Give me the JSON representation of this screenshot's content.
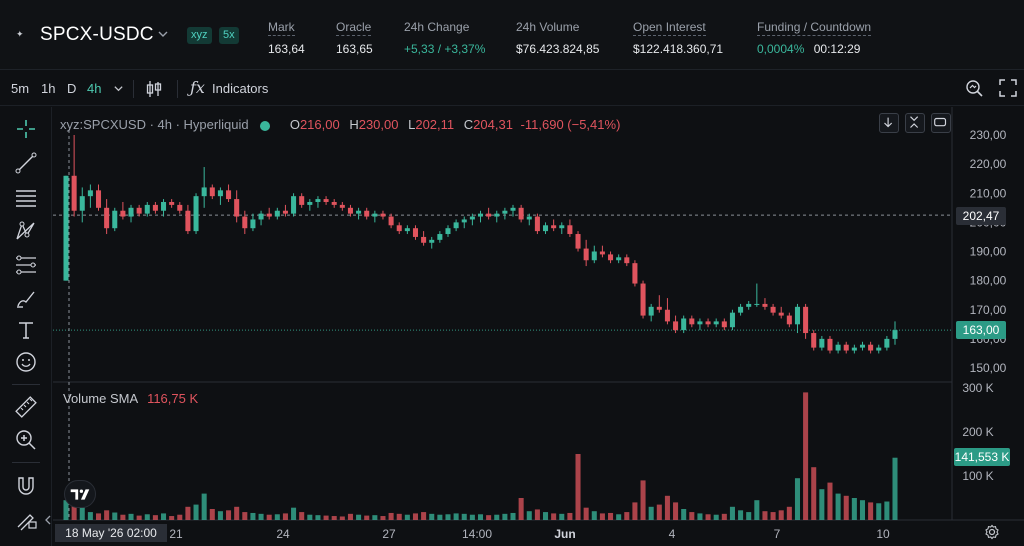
{
  "header": {
    "symbol": "SPCX-USDC",
    "tags": [
      "xyz",
      "5x"
    ],
    "stats": [
      {
        "label": "Mark",
        "value": "163,64"
      },
      {
        "label": "Oracle",
        "value": "163,65"
      },
      {
        "label": "24h Change",
        "value": "+5,33 / +3,37%"
      },
      {
        "label": "24h Volume",
        "value": "$76.423.824,85"
      },
      {
        "label": "Open Interest",
        "value": "$122.418.360,71"
      },
      {
        "label": "Funding / Countdown",
        "value": "0,0004%",
        "value2": "00:12:29"
      }
    ]
  },
  "toolbar": {
    "timeframes": [
      "5m",
      "1h",
      "D",
      "4h"
    ],
    "active_timeframe": "4h",
    "indicators_label": "Indicators"
  },
  "legend": {
    "title": "xyz:SPCXUSD · 4h · Hyperliquid",
    "ohlc": {
      "O": "216,00",
      "H": "230,00",
      "L": "202,11",
      "C": "204,31"
    },
    "change": "-11,690 (−5,41%)",
    "volume_label": "Volume SMA",
    "volume_value": "116,75 K"
  },
  "price_axis": [
    "230,00",
    "220,00",
    "210,00",
    "200,00",
    "190,00",
    "180,00",
    "170,00",
    "160,00",
    "150,00"
  ],
  "volume_axis": [
    "300 K",
    "200 K",
    "100 K"
  ],
  "time_axis": [
    "21",
    "24",
    "27",
    "14:00",
    "Jun",
    "4",
    "7",
    "10"
  ],
  "crosshair": {
    "price": "202,47",
    "date": "18 May '26   02:00"
  },
  "last_price": "163,00",
  "last_volume": "141,553 K",
  "colors": {
    "up": "#3ab79c",
    "down": "#e0545e",
    "accent": "#4ec9b0"
  },
  "chart_data": {
    "type": "candlestick",
    "title": "xyz:SPCXUSD · 4h · Hyperliquid",
    "x": [
      "18 May",
      "21",
      "24",
      "27",
      "Jun",
      "4",
      "7",
      "10"
    ],
    "ylim": [
      145,
      233
    ],
    "volume_ylim": [
      0,
      310000
    ],
    "candles": [
      {
        "o": 180,
        "h": 216,
        "l": 180,
        "c": 216,
        "v": 45000
      },
      {
        "o": 216,
        "h": 230,
        "l": 202,
        "c": 204,
        "v": 52000
      },
      {
        "o": 204,
        "h": 212,
        "l": 200,
        "c": 209,
        "v": 28000
      },
      {
        "o": 209,
        "h": 213,
        "l": 205,
        "c": 211,
        "v": 18000
      },
      {
        "o": 211,
        "h": 213,
        "l": 204,
        "c": 205,
        "v": 15000
      },
      {
        "o": 205,
        "h": 208,
        "l": 196,
        "c": 198,
        "v": 22000
      },
      {
        "o": 198,
        "h": 205,
        "l": 197,
        "c": 204,
        "v": 17000
      },
      {
        "o": 204,
        "h": 207,
        "l": 201,
        "c": 202,
        "v": 12000
      },
      {
        "o": 202,
        "h": 206,
        "l": 200,
        "c": 205,
        "v": 14000
      },
      {
        "o": 205,
        "h": 206,
        "l": 202,
        "c": 203,
        "v": 10000
      },
      {
        "o": 203,
        "h": 207,
        "l": 202,
        "c": 206,
        "v": 13000
      },
      {
        "o": 206,
        "h": 207,
        "l": 203,
        "c": 204,
        "v": 11000
      },
      {
        "o": 204,
        "h": 208,
        "l": 202,
        "c": 207,
        "v": 15000
      },
      {
        "o": 207,
        "h": 208,
        "l": 205,
        "c": 206,
        "v": 9000
      },
      {
        "o": 206,
        "h": 207,
        "l": 203,
        "c": 204,
        "v": 12000
      },
      {
        "o": 204,
        "h": 206,
        "l": 196,
        "c": 197,
        "v": 30000
      },
      {
        "o": 197,
        "h": 210,
        "l": 196,
        "c": 209,
        "v": 35000
      },
      {
        "o": 209,
        "h": 219,
        "l": 205,
        "c": 212,
        "v": 60000
      },
      {
        "o": 212,
        "h": 213,
        "l": 208,
        "c": 209,
        "v": 25000
      },
      {
        "o": 209,
        "h": 212,
        "l": 206,
        "c": 211,
        "v": 20000
      },
      {
        "o": 211,
        "h": 213,
        "l": 207,
        "c": 208,
        "v": 22000
      },
      {
        "o": 208,
        "h": 211,
        "l": 200,
        "c": 202,
        "v": 30000
      },
      {
        "o": 202,
        "h": 204,
        "l": 196,
        "c": 198,
        "v": 18000
      },
      {
        "o": 198,
        "h": 203,
        "l": 197,
        "c": 201,
        "v": 16000
      },
      {
        "o": 201,
        "h": 204,
        "l": 199,
        "c": 203,
        "v": 14000
      },
      {
        "o": 203,
        "h": 205,
        "l": 201,
        "c": 202,
        "v": 12000
      },
      {
        "o": 202,
        "h": 205,
        "l": 201,
        "c": 204,
        "v": 13000
      },
      {
        "o": 204,
        "h": 206,
        "l": 202,
        "c": 203,
        "v": 15000
      },
      {
        "o": 203,
        "h": 210,
        "l": 202,
        "c": 209,
        "v": 28000
      },
      {
        "o": 209,
        "h": 210,
        "l": 205,
        "c": 206,
        "v": 18000
      },
      {
        "o": 206,
        "h": 208,
        "l": 204,
        "c": 207,
        "v": 12000
      },
      {
        "o": 207,
        "h": 209,
        "l": 205,
        "c": 208,
        "v": 11000
      },
      {
        "o": 208,
        "h": 209,
        "l": 206,
        "c": 207,
        "v": 10000
      },
      {
        "o": 207,
        "h": 208,
        "l": 205,
        "c": 206,
        "v": 9000
      },
      {
        "o": 206,
        "h": 207,
        "l": 204,
        "c": 205,
        "v": 8000
      },
      {
        "o": 205,
        "h": 206,
        "l": 202,
        "c": 203,
        "v": 14000
      },
      {
        "o": 203,
        "h": 205,
        "l": 201,
        "c": 204,
        "v": 12000
      },
      {
        "o": 204,
        "h": 205,
        "l": 201,
        "c": 202,
        "v": 10000
      },
      {
        "o": 202,
        "h": 204,
        "l": 200,
        "c": 203,
        "v": 11000
      },
      {
        "o": 203,
        "h": 204,
        "l": 201,
        "c": 202,
        "v": 9000
      },
      {
        "o": 202,
        "h": 203,
        "l": 198,
        "c": 199,
        "v": 16000
      },
      {
        "o": 199,
        "h": 200,
        "l": 196,
        "c": 197,
        "v": 14000
      },
      {
        "o": 197,
        "h": 199,
        "l": 196,
        "c": 198,
        "v": 12000
      },
      {
        "o": 198,
        "h": 199,
        "l": 194,
        "c": 195,
        "v": 15000
      },
      {
        "o": 195,
        "h": 197,
        "l": 192,
        "c": 193,
        "v": 18000
      },
      {
        "o": 193,
        "h": 195,
        "l": 191,
        "c": 194,
        "v": 14000
      },
      {
        "o": 194,
        "h": 197,
        "l": 193,
        "c": 196,
        "v": 12000
      },
      {
        "o": 196,
        "h": 199,
        "l": 195,
        "c": 198,
        "v": 13000
      },
      {
        "o": 198,
        "h": 201,
        "l": 197,
        "c": 200,
        "v": 15000
      },
      {
        "o": 200,
        "h": 202,
        "l": 198,
        "c": 201,
        "v": 14000
      },
      {
        "o": 201,
        "h": 203,
        "l": 199,
        "c": 202,
        "v": 12000
      },
      {
        "o": 202,
        "h": 204,
        "l": 200,
        "c": 203,
        "v": 13000
      },
      {
        "o": 203,
        "h": 205,
        "l": 201,
        "c": 202,
        "v": 11000
      },
      {
        "o": 202,
        "h": 204,
        "l": 200,
        "c": 203,
        "v": 12000
      },
      {
        "o": 203,
        "h": 205,
        "l": 201,
        "c": 204,
        "v": 14000
      },
      {
        "o": 204,
        "h": 206,
        "l": 202,
        "c": 205,
        "v": 16000
      },
      {
        "o": 205,
        "h": 206,
        "l": 200,
        "c": 201,
        "v": 50000
      },
      {
        "o": 201,
        "h": 203,
        "l": 199,
        "c": 202,
        "v": 20000
      },
      {
        "o": 202,
        "h": 203,
        "l": 196,
        "c": 197,
        "v": 24000
      },
      {
        "o": 197,
        "h": 200,
        "l": 196,
        "c": 199,
        "v": 18000
      },
      {
        "o": 199,
        "h": 201,
        "l": 197,
        "c": 198,
        "v": 15000
      },
      {
        "o": 198,
        "h": 200,
        "l": 196,
        "c": 199,
        "v": 14000
      },
      {
        "o": 199,
        "h": 201,
        "l": 195,
        "c": 196,
        "v": 16000
      },
      {
        "o": 196,
        "h": 197,
        "l": 190,
        "c": 191,
        "v": 150000
      },
      {
        "o": 191,
        "h": 194,
        "l": 185,
        "c": 187,
        "v": 28000
      },
      {
        "o": 187,
        "h": 192,
        "l": 186,
        "c": 190,
        "v": 20000
      },
      {
        "o": 190,
        "h": 192,
        "l": 188,
        "c": 189,
        "v": 15000
      },
      {
        "o": 189,
        "h": 190,
        "l": 186,
        "c": 187,
        "v": 16000
      },
      {
        "o": 187,
        "h": 189,
        "l": 186,
        "c": 188,
        "v": 13000
      },
      {
        "o": 188,
        "h": 189,
        "l": 185,
        "c": 186,
        "v": 18000
      },
      {
        "o": 186,
        "h": 187,
        "l": 178,
        "c": 179,
        "v": 40000
      },
      {
        "o": 179,
        "h": 180,
        "l": 167,
        "c": 168,
        "v": 90000
      },
      {
        "o": 168,
        "h": 172,
        "l": 166,
        "c": 171,
        "v": 30000
      },
      {
        "o": 171,
        "h": 175,
        "l": 169,
        "c": 170,
        "v": 35000
      },
      {
        "o": 170,
        "h": 174,
        "l": 165,
        "c": 166,
        "v": 55000
      },
      {
        "o": 166,
        "h": 168,
        "l": 162,
        "c": 163,
        "v": 40000
      },
      {
        "o": 163,
        "h": 168,
        "l": 162,
        "c": 167,
        "v": 25000
      },
      {
        "o": 167,
        "h": 168,
        "l": 164,
        "c": 165,
        "v": 18000
      },
      {
        "o": 165,
        "h": 167,
        "l": 163,
        "c": 166,
        "v": 15000
      },
      {
        "o": 166,
        "h": 167,
        "l": 164,
        "c": 165,
        "v": 13000
      },
      {
        "o": 165,
        "h": 167,
        "l": 164,
        "c": 166,
        "v": 12000
      },
      {
        "o": 166,
        "h": 167,
        "l": 163,
        "c": 164,
        "v": 14000
      },
      {
        "o": 164,
        "h": 170,
        "l": 163,
        "c": 169,
        "v": 30000
      },
      {
        "o": 169,
        "h": 172,
        "l": 168,
        "c": 171,
        "v": 22000
      },
      {
        "o": 171,
        "h": 173,
        "l": 170,
        "c": 172,
        "v": 18000
      },
      {
        "o": 172,
        "h": 179,
        "l": 171,
        "c": 172,
        "v": 45000
      },
      {
        "o": 172,
        "h": 174,
        "l": 170,
        "c": 171,
        "v": 20000
      },
      {
        "o": 171,
        "h": 172,
        "l": 168,
        "c": 169,
        "v": 18000
      },
      {
        "o": 169,
        "h": 171,
        "l": 167,
        "c": 168,
        "v": 22000
      },
      {
        "o": 168,
        "h": 169,
        "l": 164,
        "c": 165,
        "v": 30000
      },
      {
        "o": 165,
        "h": 172,
        "l": 162,
        "c": 171,
        "v": 95000
      },
      {
        "o": 171,
        "h": 172,
        "l": 160,
        "c": 162,
        "v": 290000
      },
      {
        "o": 162,
        "h": 163,
        "l": 156,
        "c": 157,
        "v": 120000
      },
      {
        "o": 157,
        "h": 161,
        "l": 156,
        "c": 160,
        "v": 70000
      },
      {
        "o": 160,
        "h": 161,
        "l": 155,
        "c": 156,
        "v": 85000
      },
      {
        "o": 156,
        "h": 159,
        "l": 155,
        "c": 158,
        "v": 60000
      },
      {
        "o": 158,
        "h": 159,
        "l": 155,
        "c": 156,
        "v": 55000
      },
      {
        "o": 156,
        "h": 158,
        "l": 155,
        "c": 157,
        "v": 50000
      },
      {
        "o": 157,
        "h": 159,
        "l": 156,
        "c": 158,
        "v": 45000
      },
      {
        "o": 158,
        "h": 159,
        "l": 155,
        "c": 156,
        "v": 40000
      },
      {
        "o": 156,
        "h": 158,
        "l": 155,
        "c": 157,
        "v": 38000
      },
      {
        "o": 157,
        "h": 161,
        "l": 156,
        "c": 160,
        "v": 42000
      },
      {
        "o": 160,
        "h": 166,
        "l": 158,
        "c": 163,
        "v": 141553
      }
    ]
  }
}
